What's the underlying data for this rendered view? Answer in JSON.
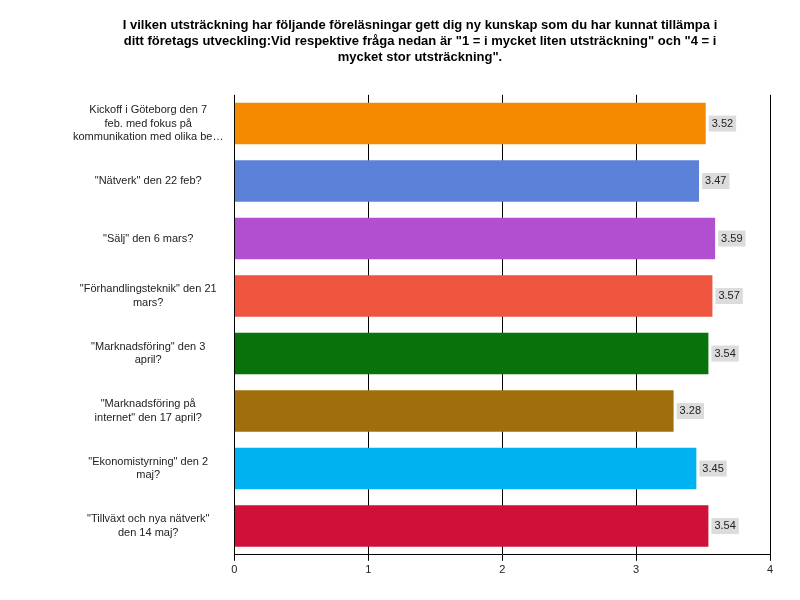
{
  "chart_data": {
    "type": "bar",
    "orientation": "horizontal",
    "title": "I vilken utsträckning har följande föreläsningar gett dig ny kunskap som du har kunnat tillämpa i ditt företags utveckling:Vid respektive fråga nedan är \"1 = i mycket liten utsträckning\" och \"4 = i mycket stor utsträckning\".",
    "categories": [
      "Kickoff i Göteborg den 7 feb. med fokus på kommunikation med olika be…",
      "\"Nätverk\" den 22 feb?",
      "\"Sälj\" den 6 mars?",
      "\"Förhandlingsteknik\" den 21 mars?",
      "\"Marknadsföring\" den 3 april?",
      "\"Marknadsföring på internet\" den 17 april?",
      "\"Ekonomistyrning\" den 2 maj?",
      "\"Tillväxt och nya nätverk\" den 14 maj?"
    ],
    "values": [
      3.52,
      3.47,
      3.59,
      3.57,
      3.54,
      3.28,
      3.45,
      3.54
    ],
    "colors": [
      "#f58a00",
      "#5b82d8",
      "#b14fd0",
      "#f0553f",
      "#0a720a",
      "#a06f0c",
      "#00b2f0",
      "#cf1038"
    ],
    "xlim": [
      0,
      4
    ],
    "xticks": [
      0,
      1,
      2,
      3,
      4
    ],
    "grid": true,
    "data_labels": true
  }
}
